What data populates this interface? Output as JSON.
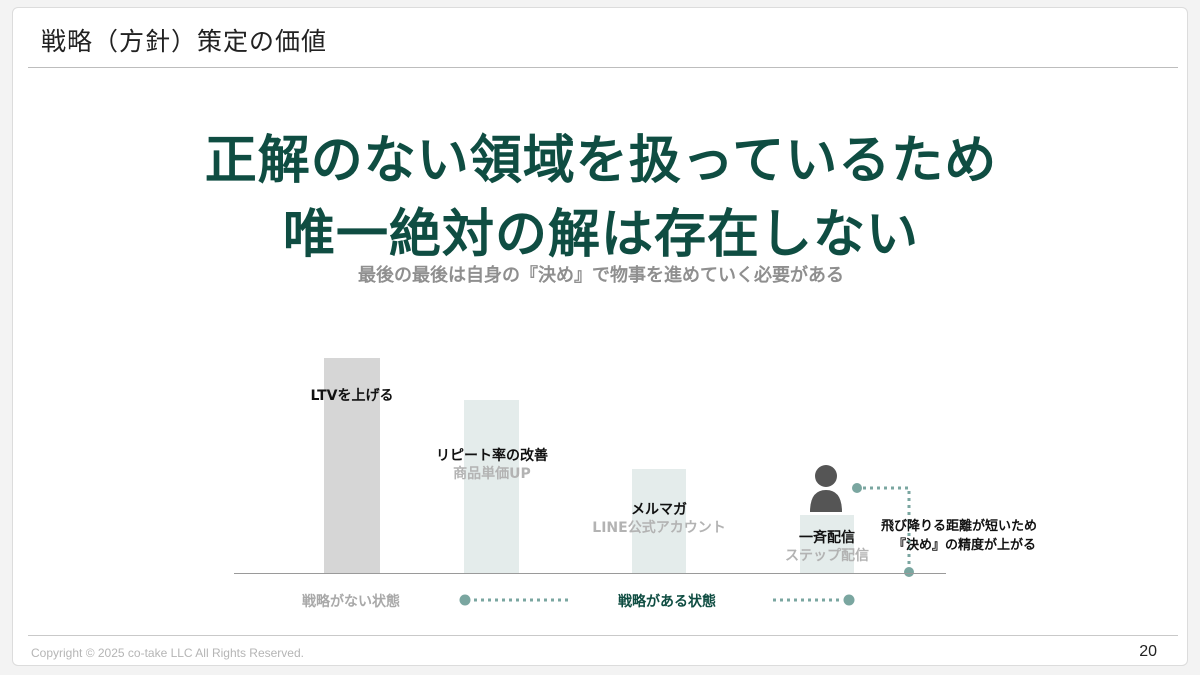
{
  "header": {
    "title": "戦略（方針）策定の価値"
  },
  "headline": {
    "line1": "正解のない領域を扱っているため",
    "line2": "唯一絶対の解は存在しない",
    "sub": "最後の最後は自身の『決め』で物事を進めていく必要がある"
  },
  "diagram": {
    "steps": [
      {
        "main": "LTVを上げる",
        "sub": ""
      },
      {
        "main": "リピート率の改善",
        "sub": "商品単価UP"
      },
      {
        "main": "メルマガ",
        "sub": "LINE公式アカウント"
      },
      {
        "main": "一斉配信",
        "sub": "ステップ配信"
      }
    ],
    "axis_left": "戦略がない状態",
    "axis_right": "戦略がある状態",
    "note_line1": "飛び降りる距離が短いため",
    "note_line2": "『決め』の精度が上がる",
    "colors": {
      "bar_dark": "#d6d6d6",
      "bar_light": "#e4eceb",
      "accent": "#0f4d42",
      "dot_teal": "#7aa6a0",
      "person": "#555555"
    }
  },
  "footer": {
    "copyright": "Copyright © 2025 co-take LLC All Rights Reserved.",
    "page": "20"
  }
}
